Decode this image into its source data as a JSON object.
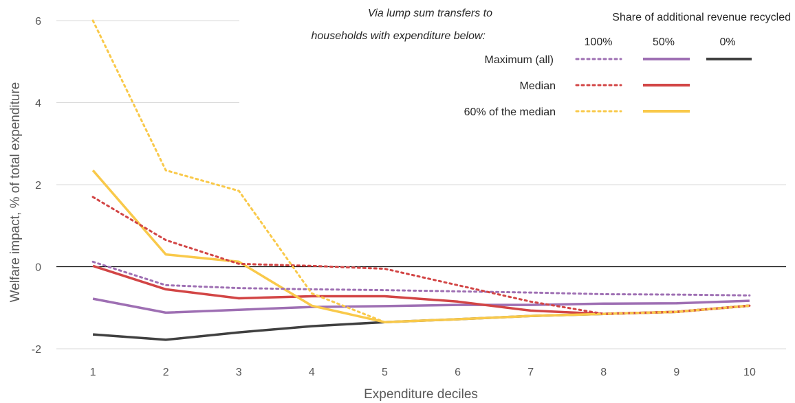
{
  "chart_data": {
    "type": "line",
    "xlabel": "Expenditure deciles",
    "ylabel": "Welfare impact, % of total expenditure",
    "ylim": [
      -2,
      6
    ],
    "yticks": [
      -2,
      0,
      2,
      4,
      6
    ],
    "categories": [
      "1",
      "2",
      "3",
      "4",
      "5",
      "6",
      "7",
      "8",
      "9",
      "10"
    ],
    "grid": true,
    "legend": {
      "position": "top-right",
      "heading": "Share of additional revenue recycled",
      "subheading_line1": "Via lump sum transfers to",
      "subheading_line2": "households with expenditure below:",
      "columns": [
        "100%",
        "50%",
        "0%"
      ],
      "rows": [
        "Maximum (all)",
        "Median",
        "60% of the median"
      ]
    },
    "colors": {
      "maximum": "#9e6fb3",
      "median": "#d24545",
      "sixty": "#f9c94a",
      "zero": "#404040"
    },
    "series": [
      {
        "group": "Maximum (all)",
        "share": "100%",
        "style": "dotted",
        "color": "#9e6fb3",
        "values": [
          0.12,
          -0.45,
          -0.52,
          -0.55,
          -0.57,
          -0.6,
          -0.63,
          -0.67,
          -0.68,
          -0.7
        ]
      },
      {
        "group": "Maximum (all)",
        "share": "50%",
        "style": "solid",
        "color": "#9e6fb3",
        "values": [
          -0.78,
          -1.12,
          -1.05,
          -0.98,
          -0.96,
          -0.93,
          -0.93,
          -0.9,
          -0.89,
          -0.83
        ]
      },
      {
        "group": "Median",
        "share": "100%",
        "style": "dotted",
        "color": "#d24545",
        "values": [
          1.7,
          0.65,
          0.07,
          0.02,
          -0.05,
          -0.45,
          -0.85,
          -1.15,
          -1.1,
          -0.95
        ]
      },
      {
        "group": "Median",
        "share": "50%",
        "style": "solid",
        "color": "#d24545",
        "values": [
          0.02,
          -0.55,
          -0.77,
          -0.72,
          -0.72,
          -0.85,
          -1.07,
          -1.15,
          -1.1,
          -0.95
        ]
      },
      {
        "group": "60% of the median",
        "share": "100%",
        "style": "dotted",
        "color": "#f9c94a",
        "values": [
          6.0,
          2.35,
          1.85,
          -0.65,
          -1.35,
          -1.28,
          -1.2,
          -1.15,
          -1.1,
          -0.95
        ]
      },
      {
        "group": "60% of the median",
        "share": "50%",
        "style": "solid",
        "color": "#f9c94a",
        "values": [
          2.35,
          0.3,
          0.12,
          -0.95,
          -1.35,
          -1.28,
          -1.2,
          -1.15,
          -1.1,
          -0.95
        ]
      },
      {
        "group": "All",
        "share": "0%",
        "style": "solid",
        "color": "#404040",
        "values": [
          -1.65,
          -1.78,
          -1.6,
          -1.45,
          -1.35,
          -1.28,
          -1.2,
          -1.15,
          -1.1,
          -0.95
        ]
      }
    ]
  }
}
